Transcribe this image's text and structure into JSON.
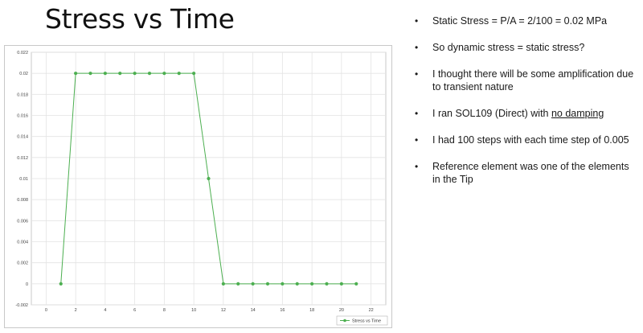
{
  "slide": {
    "title": "Stress vs Time"
  },
  "bullets": [
    {
      "text": "Static Stress = P/A = 2/100 = 0.02 MPa"
    },
    {
      "text": "So dynamic stress = static stress?"
    },
    {
      "text": "I thought there will be some amplification due to transient nature"
    },
    {
      "text_before": "I ran SOL109 (Direct) with ",
      "text_underlined": "no damping"
    },
    {
      "text": "I had 100 steps with each time step of 0.005"
    },
    {
      "text": "Reference element was one of the elements in the Tip"
    }
  ],
  "bullet_glyph": "•",
  "chart_data": {
    "type": "line",
    "title": "",
    "xlabel": "",
    "ylabel": "",
    "xlim": [
      -1,
      23
    ],
    "ylim": [
      -0.002,
      0.022
    ],
    "x_ticks": [
      0,
      2,
      4,
      6,
      8,
      10,
      12,
      14,
      16,
      18,
      20,
      22
    ],
    "y_ticks": [
      -0.002,
      0,
      0.002,
      0.004,
      0.006,
      0.008,
      0.01,
      0.012,
      0.014,
      0.016,
      0.018,
      0.02,
      0.022
    ],
    "y_tick_labels": [
      "-0.002",
      "0",
      "0.002",
      "0.004",
      "0.006",
      "0.008",
      "0.01",
      "0.012",
      "0.014",
      "0.016",
      "0.018",
      "0.02",
      "0.022"
    ],
    "grid": true,
    "legend_position": "bottom-right",
    "series": [
      {
        "name": "Stress vs Time",
        "color": "#4caf50",
        "x": [
          1,
          2,
          3,
          4,
          5,
          6,
          7,
          8,
          9,
          10,
          11,
          12,
          13,
          14,
          15,
          16,
          17,
          18,
          19,
          20,
          21
        ],
        "y": [
          0,
          0.02,
          0.02,
          0.02,
          0.02,
          0.02,
          0.02,
          0.02,
          0.02,
          0.02,
          0.01,
          0,
          0,
          0,
          0,
          0,
          0,
          0,
          0,
          0,
          0
        ]
      }
    ]
  }
}
